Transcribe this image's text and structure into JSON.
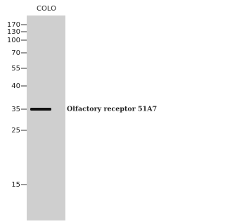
{
  "lane_label": "COLO",
  "markers": [
    "170",
    "130",
    "100",
    "70",
    "55",
    "40",
    "35",
    "25",
    "15"
  ],
  "band_label": "Olfactory receptor 51A7"
}
